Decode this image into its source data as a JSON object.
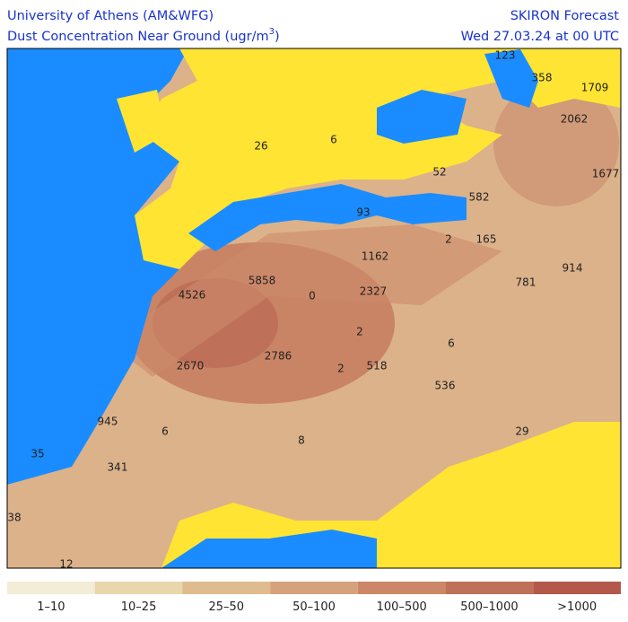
{
  "header": {
    "left_title": "University of Athens (AM&WFG)",
    "left_subtitle": {
      "text": "Dust Concentration Near Ground (ugr/m",
      "superscript": "3",
      "close": ")"
    },
    "right_title": "SKIRON Forecast",
    "right_subtitle": "Wed 27.03.24 at 00 UTC"
  },
  "map_labels": [
    123,
    358,
    1709,
    2062,
    26,
    6,
    52,
    1677,
    582,
    93,
    2,
    165,
    1162,
    914,
    4526,
    5858,
    0,
    2327,
    781,
    2,
    6,
    2670,
    2786,
    2,
    518,
    536,
    945,
    6,
    8,
    29,
    35,
    341,
    38,
    12
  ],
  "legend": {
    "labels": [
      "1–10",
      "10–25",
      "25–50",
      "50–100",
      "100–500",
      "500–1000",
      ">1000"
    ],
    "colors": [
      "#f3ecd6",
      "#e9d6ab",
      "#dfbc8e",
      "#d6a27c",
      "#cb8767",
      "#bf7058",
      "#b3584b"
    ]
  }
}
